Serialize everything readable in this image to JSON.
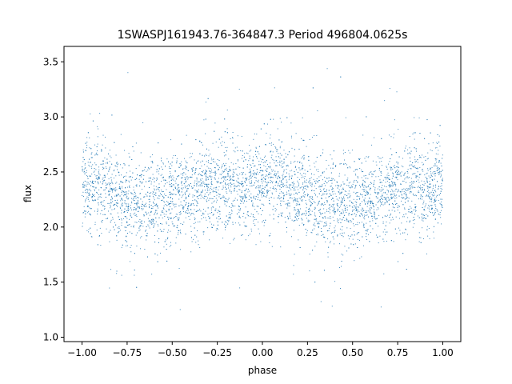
{
  "chart_data": {
    "type": "scatter",
    "title": "1SWASPJ161943.76-364847.3 Period 496804.0625s",
    "xlabel": "phase",
    "ylabel": "flux",
    "xlim": [
      -1.1,
      1.1
    ],
    "ylim": [
      0.96,
      3.64
    ],
    "xticks": [
      -1.0,
      -0.75,
      -0.5,
      -0.25,
      0.0,
      0.25,
      0.5,
      0.75,
      1.0
    ],
    "xtick_labels": [
      "−1.00",
      "−0.75",
      "−0.50",
      "−0.25",
      "0.00",
      "0.25",
      "0.50",
      "0.75",
      "1.00"
    ],
    "yticks": [
      1.0,
      1.5,
      2.0,
      2.5,
      3.0,
      3.5
    ],
    "ytick_labels": [
      "1.0",
      "1.5",
      "2.0",
      "2.5",
      "3.0",
      "3.5"
    ],
    "grid": false,
    "series": [
      {
        "marker_color": "#1f77b4",
        "x_range": [
          -1.0,
          1.0
        ],
        "typical_flux": 2.3,
        "profile": {
          "x": [
            -1.0,
            -0.9,
            -0.8,
            -0.7,
            -0.6,
            -0.5,
            -0.4,
            -0.3,
            -0.2,
            -0.1,
            0.0,
            0.1,
            0.2,
            0.3,
            0.4,
            0.5,
            0.6,
            0.7,
            0.8,
            0.9,
            1.0
          ],
          "y": [
            2.4,
            2.35,
            2.25,
            2.2,
            2.25,
            2.25,
            2.3,
            2.35,
            2.4,
            2.3,
            2.45,
            2.4,
            2.3,
            2.25,
            2.2,
            2.25,
            2.25,
            2.3,
            2.4,
            2.3,
            2.4
          ]
        }
      }
    ]
  }
}
